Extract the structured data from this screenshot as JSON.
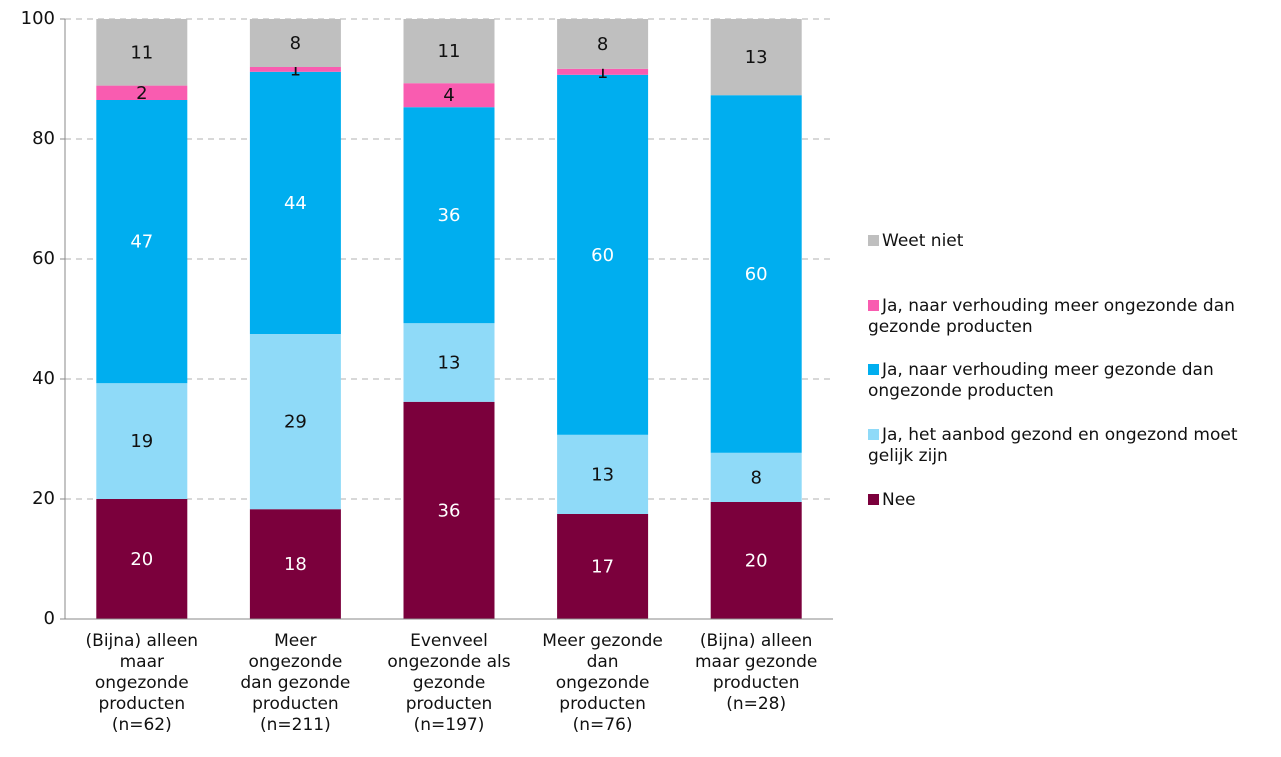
{
  "chart_data": {
    "type": "stacked_bar",
    "categories": [
      "(Bijna) alleen\nmaar\nongezonde\nproducten\n(n=62)",
      "Meer\nongezonde\ndan gezonde\nproducten\n(n=211)",
      "Evenveel\nongezonde als\ngezonde\nproducten\n(n=197)",
      "Meer gezonde\ndan\nongezonde\nproducten\n(n=76)",
      "(Bijna) alleen\nmaar gezonde\nproducten\n(n=28)"
    ],
    "series": [
      {
        "name": "Nee",
        "color": "#7b003c",
        "values": [
          20.0,
          18.3,
          36.2,
          17.5,
          19.5
        ],
        "value_labels": [
          "20",
          "18",
          "36",
          "17",
          "20"
        ]
      },
      {
        "name": "Ja, het aanbod gezond en ongezond moet gelijk zijn",
        "color": "#8fdaf8",
        "values": [
          19.3,
          29.2,
          13.1,
          13.2,
          8.2
        ],
        "value_labels": [
          "19",
          "29",
          "13",
          "13",
          "8"
        ]
      },
      {
        "name": "Ja, naar verhouding meer gezonde dan ongezonde producten",
        "color": "#00aeef",
        "values": [
          47.2,
          43.7,
          36.0,
          60.0,
          59.6
        ],
        "value_labels": [
          "47",
          "44",
          "36",
          "60",
          "60"
        ]
      },
      {
        "name": "Ja, naar verhouding meer ongezonde dan gezonde producten",
        "color": "#f95cb0",
        "values": [
          2.4,
          0.8,
          4.0,
          1.0,
          0
        ],
        "value_labels": [
          "2",
          "1",
          "4",
          "1",
          null
        ]
      },
      {
        "name": "Weet niet",
        "color": "#bfbfbf",
        "values": [
          11.1,
          8.0,
          10.7,
          8.3,
          12.7
        ],
        "value_labels": [
          "11",
          "8",
          "11",
          "8",
          "13"
        ]
      }
    ],
    "ylim": [
      0,
      100
    ],
    "yticks": [
      0,
      20,
      40,
      60,
      80,
      100
    ],
    "grid": true,
    "legend": "right"
  }
}
